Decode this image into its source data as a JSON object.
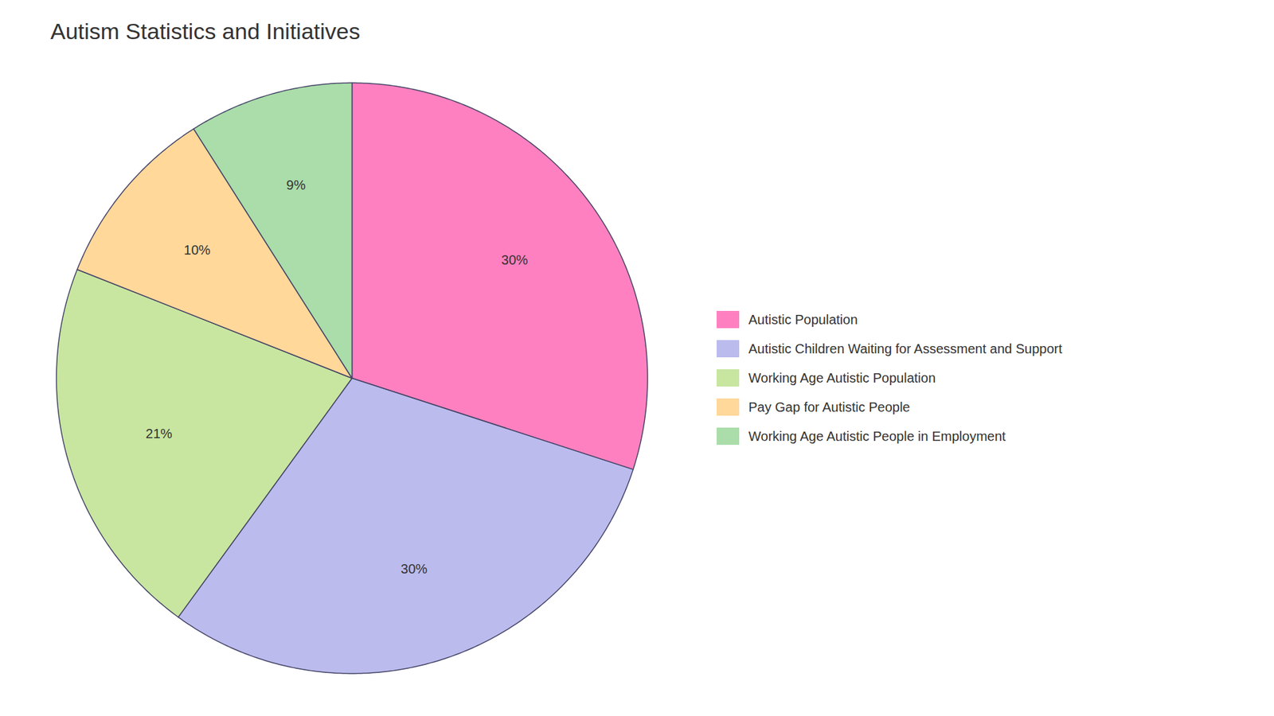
{
  "chart_data": {
    "type": "pie",
    "title": "Autism Statistics and Initiatives",
    "categories": [
      "Autistic Population",
      "Autistic Children Waiting for Assessment and Support",
      "Working Age Autistic Population",
      "Pay Gap for Autistic People",
      "Working Age Autistic People in Employment"
    ],
    "values": [
      30,
      30,
      21,
      10,
      9
    ],
    "value_labels": [
      "30%",
      "30%",
      "21%",
      "10%",
      "9%"
    ],
    "colors": [
      "#FF80C0",
      "#BBBBEE",
      "#C8E6A0",
      "#FFD89A",
      "#AADDAA"
    ],
    "data_labels": true,
    "legend": "right"
  }
}
